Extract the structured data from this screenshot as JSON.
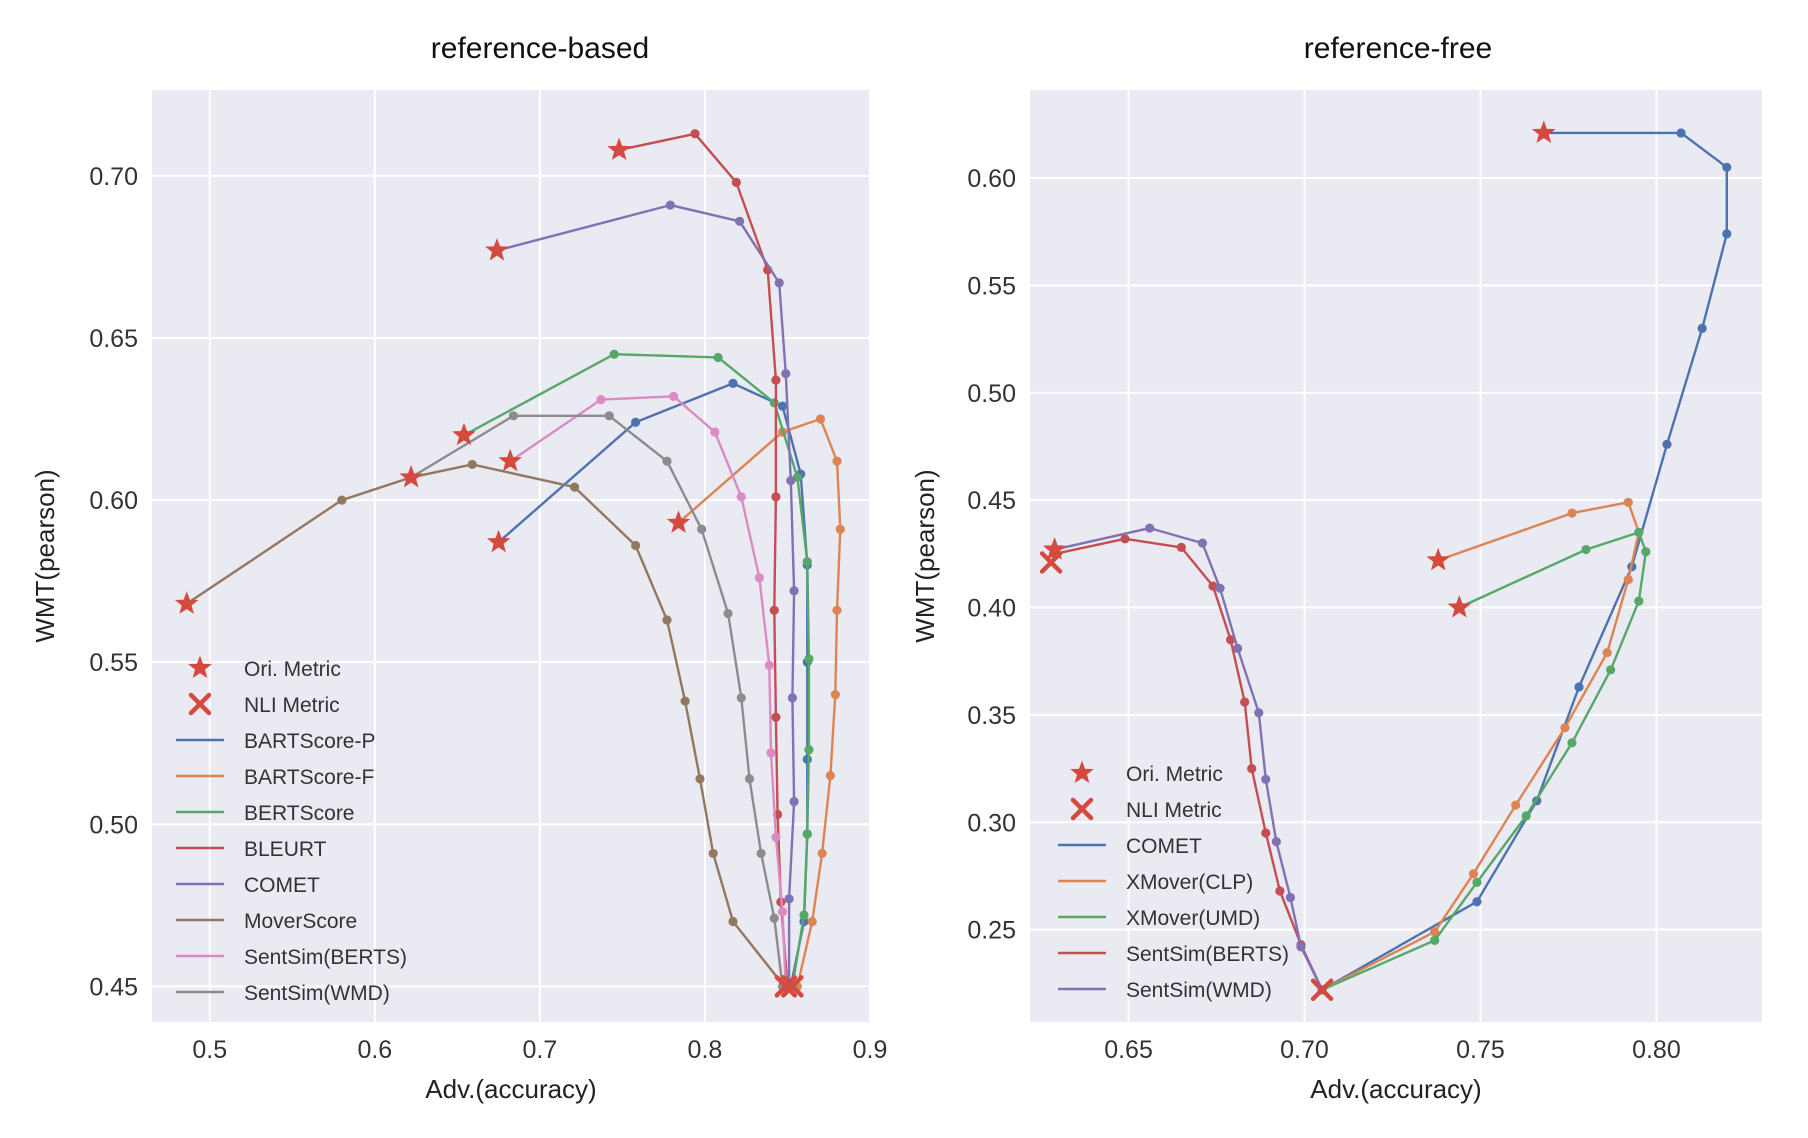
{
  "chart_data": [
    {
      "type": "line",
      "title": "reference-based",
      "xlabel": "Adv.(accuracy)",
      "ylabel": "WMT(pearson)",
      "xlim": [
        0.465,
        0.9
      ],
      "ylim": [
        0.439,
        0.7265
      ],
      "xticks": [
        0.5,
        0.6,
        0.7,
        0.8,
        0.9
      ],
      "xtick_labels": [
        "0.5",
        "0.6",
        "0.7",
        "0.8",
        "0.9"
      ],
      "yticks": [
        0.45,
        0.5,
        0.55,
        0.6,
        0.65,
        0.7
      ],
      "ytick_labels": [
        "0.45",
        "0.50",
        "0.55",
        "0.60",
        "0.65",
        "0.70"
      ],
      "grid": true,
      "background": "#eaeaf2",
      "legend_position": "lower-left",
      "legend_markers": [
        {
          "label": "Ori. Metric",
          "marker": "star"
        },
        {
          "label": "NLI Metric",
          "marker": "x"
        }
      ],
      "series": [
        {
          "name": "BARTScore-P",
          "color": "#4c72b0",
          "points": [
            [
              0.675,
              0.587
            ],
            [
              0.758,
              0.624
            ],
            [
              0.817,
              0.636
            ],
            [
              0.847,
              0.629
            ],
            [
              0.858,
              0.608
            ],
            [
              0.862,
              0.58
            ],
            [
              0.862,
              0.55
            ],
            [
              0.862,
              0.52
            ],
            [
              0.862,
              0.497
            ],
            [
              0.86,
              0.47
            ],
            [
              0.852,
              0.45
            ]
          ]
        },
        {
          "name": "BARTScore-F",
          "color": "#dd8452",
          "points": [
            [
              0.784,
              0.593
            ],
            [
              0.847,
              0.621
            ],
            [
              0.87,
              0.625
            ],
            [
              0.88,
              0.612
            ],
            [
              0.882,
              0.591
            ],
            [
              0.88,
              0.566
            ],
            [
              0.879,
              0.54
            ],
            [
              0.876,
              0.515
            ],
            [
              0.871,
              0.491
            ],
            [
              0.865,
              0.47
            ],
            [
              0.856,
              0.45
            ]
          ]
        },
        {
          "name": "BERTScore",
          "color": "#55a868",
          "points": [
            [
              0.654,
              0.62
            ],
            [
              0.745,
              0.645
            ],
            [
              0.808,
              0.644
            ],
            [
              0.842,
              0.63
            ],
            [
              0.856,
              0.607
            ],
            [
              0.862,
              0.581
            ],
            [
              0.863,
              0.551
            ],
            [
              0.863,
              0.523
            ],
            [
              0.862,
              0.497
            ],
            [
              0.86,
              0.472
            ],
            [
              0.853,
              0.45
            ]
          ]
        },
        {
          "name": "BLEURT",
          "color": "#c44e52",
          "points": [
            [
              0.748,
              0.708
            ],
            [
              0.794,
              0.713
            ],
            [
              0.819,
              0.698
            ],
            [
              0.838,
              0.671
            ],
            [
              0.843,
              0.637
            ],
            [
              0.843,
              0.601
            ],
            [
              0.842,
              0.566
            ],
            [
              0.843,
              0.533
            ],
            [
              0.844,
              0.503
            ],
            [
              0.846,
              0.476
            ],
            [
              0.85,
              0.45
            ]
          ]
        },
        {
          "name": "COMET",
          "color": "#8172b3",
          "points": [
            [
              0.674,
              0.677
            ],
            [
              0.779,
              0.691
            ],
            [
              0.821,
              0.686
            ],
            [
              0.845,
              0.667
            ],
            [
              0.849,
              0.639
            ],
            [
              0.852,
              0.606
            ],
            [
              0.854,
              0.572
            ],
            [
              0.853,
              0.539
            ],
            [
              0.854,
              0.507
            ],
            [
              0.851,
              0.477
            ],
            [
              0.851,
              0.45
            ]
          ]
        },
        {
          "name": "MoverScore",
          "color": "#937860",
          "points": [
            [
              0.486,
              0.568
            ],
            [
              0.58,
              0.6
            ],
            [
              0.622,
              0.607
            ],
            [
              0.659,
              0.611
            ],
            [
              0.721,
              0.604
            ],
            [
              0.758,
              0.586
            ],
            [
              0.777,
              0.563
            ],
            [
              0.788,
              0.538
            ],
            [
              0.797,
              0.514
            ],
            [
              0.805,
              0.491
            ],
            [
              0.817,
              0.47
            ],
            [
              0.848,
              0.45
            ]
          ]
        },
        {
          "name": "SentSim(BERTS)",
          "color": "#da8bc3",
          "points": [
            [
              0.682,
              0.612
            ],
            [
              0.737,
              0.631
            ],
            [
              0.781,
              0.632
            ],
            [
              0.806,
              0.621
            ],
            [
              0.822,
              0.601
            ],
            [
              0.833,
              0.576
            ],
            [
              0.839,
              0.549
            ],
            [
              0.84,
              0.522
            ],
            [
              0.843,
              0.496
            ],
            [
              0.847,
              0.473
            ],
            [
              0.849,
              0.45
            ]
          ]
        },
        {
          "name": "SentSim(WMD)",
          "color": "#8c8c8c",
          "points": [
            [
              0.622,
              0.607
            ],
            [
              0.684,
              0.626
            ],
            [
              0.742,
              0.626
            ],
            [
              0.777,
              0.612
            ],
            [
              0.798,
              0.591
            ],
            [
              0.814,
              0.565
            ],
            [
              0.822,
              0.539
            ],
            [
              0.827,
              0.514
            ],
            [
              0.834,
              0.491
            ],
            [
              0.842,
              0.471
            ],
            [
              0.847,
              0.45
            ]
          ]
        }
      ],
      "ori_metric_points": [
        [
          0.674,
          0.677
        ],
        [
          0.748,
          0.708
        ],
        [
          0.654,
          0.62
        ],
        [
          0.622,
          0.607
        ],
        [
          0.682,
          0.612
        ],
        [
          0.675,
          0.587
        ],
        [
          0.784,
          0.593
        ],
        [
          0.486,
          0.568
        ]
      ],
      "nli_metric_points": [
        [
          0.849,
          0.45
        ],
        [
          0.853,
          0.45
        ]
      ]
    },
    {
      "type": "line",
      "title": "reference-free",
      "xlabel": "Adv.(accuracy)",
      "ylabel": "WMT(pearson)",
      "xlim": [
        0.622,
        0.83
      ],
      "ylim": [
        0.207,
        0.641
      ],
      "xticks": [
        0.65,
        0.7,
        0.75,
        0.8
      ],
      "xtick_labels": [
        "0.65",
        "0.70",
        "0.75",
        "0.80"
      ],
      "yticks": [
        0.25,
        0.3,
        0.35,
        0.4,
        0.45,
        0.5,
        0.55,
        0.6
      ],
      "ytick_labels": [
        "0.25",
        "0.30",
        "0.35",
        "0.40",
        "0.45",
        "0.50",
        "0.55",
        "0.60"
      ],
      "grid": true,
      "background": "#eaeaf2",
      "legend_position": "lower-left",
      "legend_markers": [
        {
          "label": "Ori. Metric",
          "marker": "star"
        },
        {
          "label": "NLI Metric",
          "marker": "x"
        }
      ],
      "series": [
        {
          "name": "COMET",
          "color": "#4c72b0",
          "points": [
            [
              0.768,
              0.621
            ],
            [
              0.807,
              0.621
            ],
            [
              0.82,
              0.605
            ],
            [
              0.82,
              0.574
            ],
            [
              0.813,
              0.53
            ],
            [
              0.803,
              0.476
            ],
            [
              0.793,
              0.419
            ],
            [
              0.778,
              0.363
            ],
            [
              0.766,
              0.31
            ],
            [
              0.749,
              0.263
            ],
            [
              0.705,
              0.222
            ]
          ]
        },
        {
          "name": "XMover(CLP)",
          "color": "#dd8452",
          "points": [
            [
              0.738,
              0.422
            ],
            [
              0.776,
              0.444
            ],
            [
              0.792,
              0.449
            ],
            [
              0.795,
              0.435
            ],
            [
              0.792,
              0.413
            ],
            [
              0.786,
              0.379
            ],
            [
              0.774,
              0.344
            ],
            [
              0.76,
              0.308
            ],
            [
              0.748,
              0.276
            ],
            [
              0.737,
              0.249
            ],
            [
              0.705,
              0.222
            ]
          ]
        },
        {
          "name": "XMover(UMD)",
          "color": "#55a868",
          "points": [
            [
              0.744,
              0.4
            ],
            [
              0.78,
              0.427
            ],
            [
              0.795,
              0.435
            ],
            [
              0.797,
              0.426
            ],
            [
              0.795,
              0.403
            ],
            [
              0.787,
              0.371
            ],
            [
              0.776,
              0.337
            ],
            [
              0.763,
              0.303
            ],
            [
              0.749,
              0.272
            ],
            [
              0.737,
              0.245
            ],
            [
              0.705,
              0.222
            ]
          ]
        },
        {
          "name": "SentSim(BERTS)",
          "color": "#c44e52",
          "points": [
            [
              0.629,
              0.425
            ],
            [
              0.649,
              0.432
            ],
            [
              0.665,
              0.428
            ],
            [
              0.674,
              0.41
            ],
            [
              0.679,
              0.385
            ],
            [
              0.683,
              0.356
            ],
            [
              0.685,
              0.325
            ],
            [
              0.689,
              0.295
            ],
            [
              0.693,
              0.268
            ],
            [
              0.699,
              0.243
            ],
            [
              0.705,
              0.222
            ]
          ]
        },
        {
          "name": "SentSim(WMD)",
          "color": "#8172b3",
          "points": [
            [
              0.629,
              0.427
            ],
            [
              0.656,
              0.437
            ],
            [
              0.671,
              0.43
            ],
            [
              0.676,
              0.409
            ],
            [
              0.681,
              0.381
            ],
            [
              0.687,
              0.351
            ],
            [
              0.689,
              0.32
            ],
            [
              0.692,
              0.291
            ],
            [
              0.696,
              0.265
            ],
            [
              0.699,
              0.242
            ],
            [
              0.705,
              0.222
            ]
          ]
        }
      ],
      "ori_metric_points": [
        [
          0.768,
          0.621
        ],
        [
          0.738,
          0.422
        ],
        [
          0.744,
          0.4
        ],
        [
          0.629,
          0.427
        ]
      ],
      "nli_metric_points": [
        [
          0.705,
          0.222
        ],
        [
          0.628,
          0.421
        ]
      ]
    }
  ]
}
